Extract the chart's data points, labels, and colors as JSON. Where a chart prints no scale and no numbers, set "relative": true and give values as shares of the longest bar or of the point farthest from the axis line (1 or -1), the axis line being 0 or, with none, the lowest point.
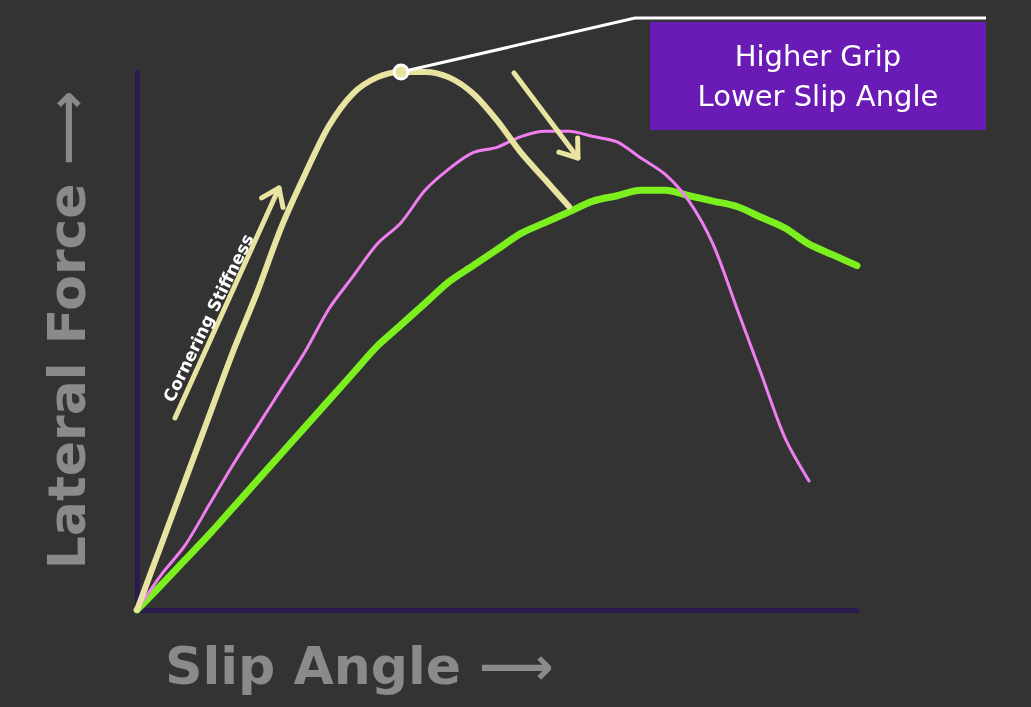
{
  "chart_data": {
    "type": "line",
    "relative": true,
    "marker": "none",
    "xlabel": "Slip Angle ⟶",
    "ylabel": "Lateral Force ⟶",
    "categories": [
      null,
      null,
      null,
      null,
      null,
      null,
      null,
      null,
      null,
      null,
      null,
      null,
      null,
      null,
      null,
      null,
      null,
      null,
      null,
      null,
      null,
      null,
      null,
      null,
      null,
      null,
      null,
      null,
      null,
      null,
      null
    ],
    "series": [
      {
        "color": "#7cf01e",
        "values": [
          0,
          0.046,
          0.093,
          0.14,
          0.19,
          0.24,
          0.29,
          0.34,
          0.39,
          0.44,
          0.49,
          0.53,
          0.57,
          0.61,
          0.64,
          0.67,
          0.7,
          0.72,
          0.74,
          0.76,
          0.77,
          0.78,
          0.78,
          0.77,
          0.76,
          0.75,
          0.73,
          0.71,
          0.68,
          0.66,
          0.64
        ]
      },
      {
        "color": "#f07ef0",
        "values": [
          0,
          0.065,
          0.12,
          0.195,
          0.27,
          0.34,
          0.41,
          0.48,
          0.56,
          0.62,
          0.68,
          0.72,
          0.78,
          0.82,
          0.85,
          0.86,
          0.88,
          0.89,
          0.89,
          0.88,
          0.87,
          0.84,
          0.81,
          0.76,
          0.68,
          0.56,
          0.44,
          0.32,
          0.24,
          null,
          null
        ]
      },
      {
        "color": "#e8e3a0",
        "values": [
          0,
          0.12,
          0.24,
          0.36,
          0.48,
          0.59,
          0.71,
          0.81,
          0.9,
          0.96,
          0.99,
          1,
          1,
          0.99,
          0.96,
          0.91,
          0.85,
          0.8,
          0.75,
          null,
          null,
          null,
          null,
          null,
          null,
          null,
          null,
          null,
          null,
          null,
          null
        ]
      }
    ],
    "annotations": [
      "Higher Grip\nLower Slip Angle",
      "Cornering Stiffness"
    ]
  }
}
